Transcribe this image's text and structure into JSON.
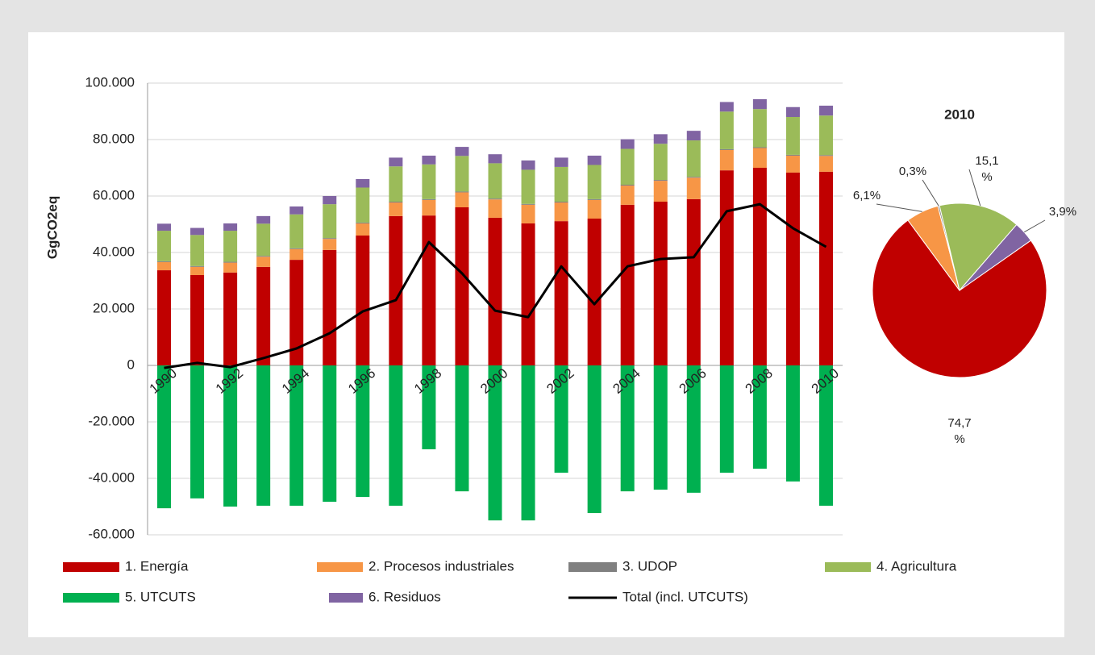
{
  "chart_data": [
    {
      "type": "bar",
      "stacked": true,
      "ylabel": "GgCO2eq",
      "categories": [
        "1990",
        null,
        "1992",
        null,
        "1994",
        null,
        "1996",
        null,
        "1998",
        null,
        "2000",
        null,
        "2002",
        null,
        "2004",
        null,
        "2006",
        null,
        "2008",
        null,
        "2010"
      ],
      "ylim": [
        -60000,
        100000
      ],
      "yticks": [
        {
          "value": 100000,
          "label": "100.000"
        },
        {
          "value": 80000,
          "label": "80.000"
        },
        {
          "value": 60000,
          "label": "60.000"
        },
        {
          "value": 40000,
          "label": "40.000"
        },
        {
          "value": 20000,
          "label": "20.000"
        },
        0,
        {
          "value": -20000,
          "label": "-20.000"
        },
        {
          "value": -40000,
          "label": "-40.000"
        },
        {
          "value": -60000,
          "label": "-60.000"
        }
      ],
      "grid": true,
      "series": [
        {
          "name": "1. Energía",
          "color": "#c00000",
          "values": [
            33700,
            32000,
            32900,
            34900,
            37400,
            40900,
            46000,
            52900,
            53100,
            56000,
            52300,
            50300,
            51100,
            52000,
            56900,
            58000,
            58900,
            69100,
            70000,
            68300,
            68600
          ]
        },
        {
          "name": "2. Procesos industriales",
          "color": "#f79646",
          "values": [
            2900,
            2900,
            3500,
            3600,
            3800,
            3900,
            4300,
            4800,
            5500,
            5300,
            6500,
            6600,
            6600,
            6600,
            6800,
            7400,
            7600,
            7200,
            7000,
            6000,
            5600
          ]
        },
        {
          "name": "3. UDOP",
          "color": "#808080",
          "values": [
            300,
            300,
            300,
            300,
            300,
            300,
            300,
            300,
            300,
            300,
            300,
            300,
            300,
            300,
            300,
            300,
            300,
            300,
            300,
            300,
            300
          ]
        },
        {
          "name": "4. Agricultura",
          "color": "#9bbb59",
          "values": [
            10800,
            11000,
            11000,
            11400,
            12000,
            12000,
            12400,
            12500,
            12300,
            12600,
            12500,
            12100,
            12300,
            12100,
            12700,
            12800,
            12900,
            13300,
            13500,
            13400,
            14000
          ]
        },
        {
          "name": "5. UTCUTS",
          "color": "#00b050",
          "values": [
            -50600,
            -47100,
            -50000,
            -49700,
            -49700,
            -48300,
            -46600,
            -49700,
            -29700,
            -44600,
            -54900,
            -54900,
            -38000,
            -52300,
            -44600,
            -44000,
            -45100,
            -38000,
            -36600,
            -41100,
            -49700
          ]
        },
        {
          "name": "6. Residuos",
          "color": "#8064a2",
          "values": [
            2500,
            2500,
            2600,
            2700,
            2800,
            2900,
            3000,
            3100,
            3100,
            3200,
            3200,
            3300,
            3300,
            3300,
            3400,
            3400,
            3400,
            3400,
            3500,
            3500,
            3500
          ]
        },
        {
          "name": "Total (incl. UTCUTS)",
          "color": "#000000",
          "type": "line",
          "values": [
            -900,
            900,
            -600,
            2600,
            6000,
            11400,
            19100,
            23100,
            43700,
            32600,
            19400,
            17100,
            35100,
            21700,
            35100,
            37700,
            38300,
            54600,
            57100,
            48600,
            42000
          ]
        }
      ]
    },
    {
      "type": "pie",
      "title": "2010",
      "values": [
        74.7,
        6.1,
        0.3,
        15.1,
        3.9
      ],
      "value_labels": [
        "74,7 %",
        "6,1%",
        "0,3%",
        "15,1 %",
        "3,9%"
      ],
      "colors": [
        "#c00000",
        "#f79646",
        "#808080",
        "#9bbb59",
        "#8064a2"
      ]
    }
  ]
}
